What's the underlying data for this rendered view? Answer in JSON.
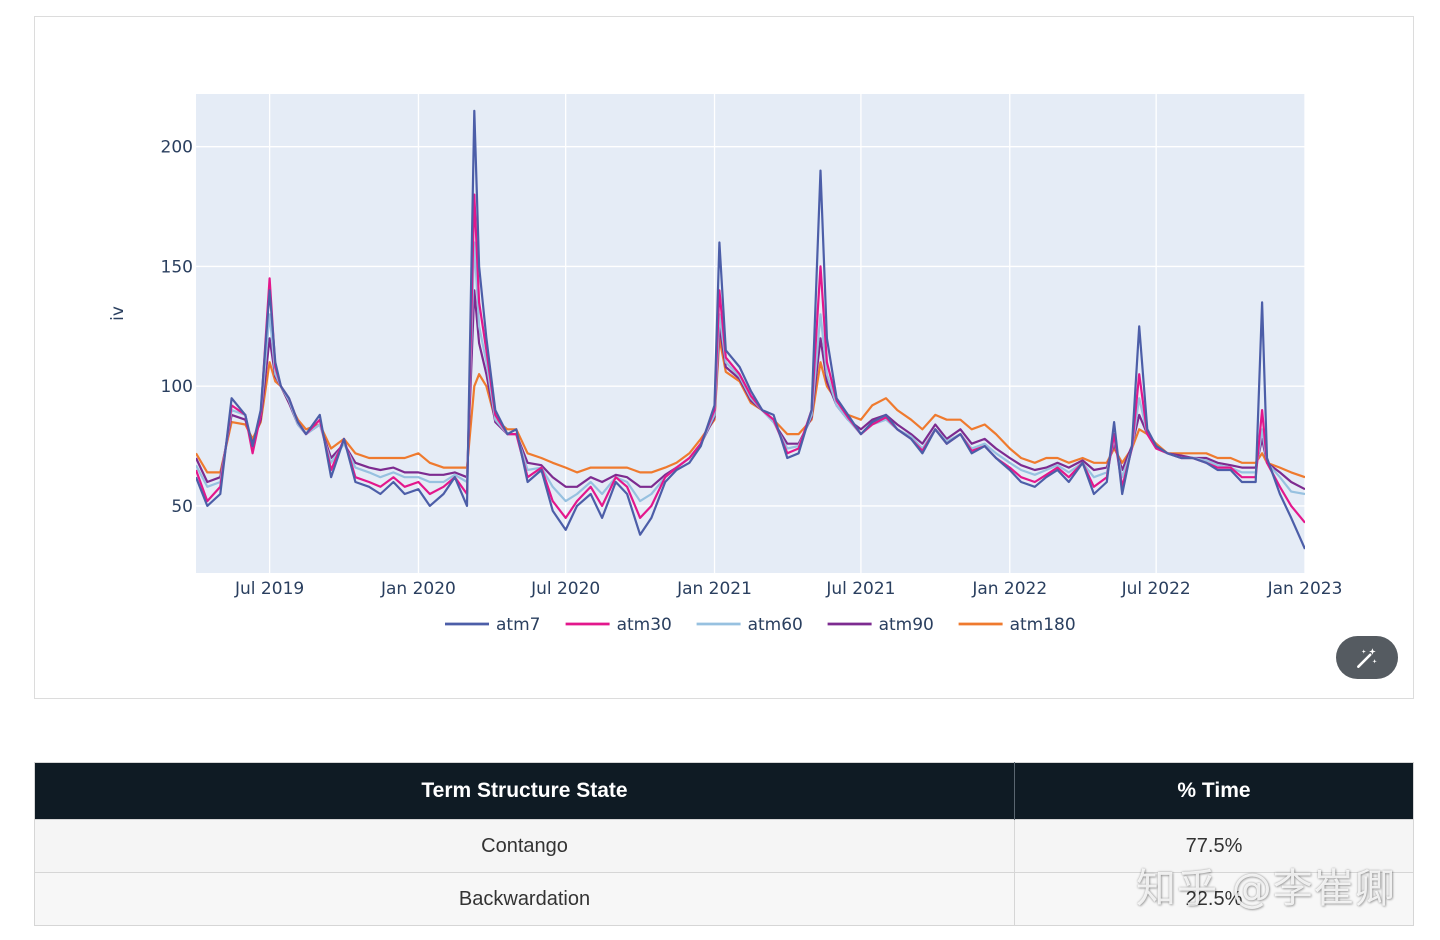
{
  "chart_data": {
    "type": "line",
    "title": "",
    "xlabel": "",
    "ylabel": "iv",
    "ylim": [
      22,
      222
    ],
    "y_ticks": [
      50,
      100,
      150,
      200
    ],
    "x_range": [
      "2019-04-01",
      "2023-01-01"
    ],
    "x_ticks": [
      {
        "date": "2019-07-01",
        "label": "Jul 2019"
      },
      {
        "date": "2020-01-01",
        "label": "Jan 2020"
      },
      {
        "date": "2020-07-01",
        "label": "Jul 2020"
      },
      {
        "date": "2021-01-01",
        "label": "Jan 2021"
      },
      {
        "date": "2021-07-01",
        "label": "Jul 2021"
      },
      {
        "date": "2022-01-01",
        "label": "Jan 2022"
      },
      {
        "date": "2022-07-01",
        "label": "Jul 2022"
      },
      {
        "date": "2023-01-01",
        "label": "Jan 2023"
      }
    ],
    "legend_position": "bottom-center",
    "grid": true,
    "x": [
      "2019-04-01",
      "2019-04-15",
      "2019-05-01",
      "2019-05-15",
      "2019-06-01",
      "2019-06-10",
      "2019-06-20",
      "2019-07-01",
      "2019-07-08",
      "2019-07-15",
      "2019-07-25",
      "2019-08-05",
      "2019-08-15",
      "2019-09-01",
      "2019-09-15",
      "2019-10-01",
      "2019-10-15",
      "2019-11-01",
      "2019-11-15",
      "2019-12-01",
      "2019-12-15",
      "2020-01-01",
      "2020-01-15",
      "2020-02-01",
      "2020-02-15",
      "2020-03-01",
      "2020-03-10",
      "2020-03-16",
      "2020-03-25",
      "2020-04-05",
      "2020-04-20",
      "2020-05-01",
      "2020-05-15",
      "2020-06-01",
      "2020-06-15",
      "2020-07-01",
      "2020-07-15",
      "2020-08-01",
      "2020-08-15",
      "2020-09-01",
      "2020-09-15",
      "2020-10-01",
      "2020-10-15",
      "2020-11-01",
      "2020-11-15",
      "2020-12-01",
      "2020-12-15",
      "2021-01-01",
      "2021-01-07",
      "2021-01-15",
      "2021-02-01",
      "2021-02-15",
      "2021-03-01",
      "2021-03-15",
      "2021-04-01",
      "2021-04-15",
      "2021-05-01",
      "2021-05-12",
      "2021-05-20",
      "2021-06-01",
      "2021-06-15",
      "2021-07-01",
      "2021-07-15",
      "2021-08-01",
      "2021-08-15",
      "2021-09-01",
      "2021-09-15",
      "2021-10-01",
      "2021-10-15",
      "2021-11-01",
      "2021-11-15",
      "2021-12-01",
      "2021-12-15",
      "2022-01-01",
      "2022-01-15",
      "2022-02-01",
      "2022-02-15",
      "2022-03-01",
      "2022-03-15",
      "2022-04-01",
      "2022-04-15",
      "2022-05-01",
      "2022-05-10",
      "2022-05-20",
      "2022-06-01",
      "2022-06-10",
      "2022-06-20",
      "2022-07-01",
      "2022-07-15",
      "2022-08-01",
      "2022-08-15",
      "2022-09-01",
      "2022-09-15",
      "2022-10-01",
      "2022-10-15",
      "2022-11-01",
      "2022-11-09",
      "2022-11-15",
      "2022-12-01",
      "2022-12-15",
      "2023-01-01"
    ],
    "series": [
      {
        "name": "atm7",
        "color": "#4c5ea8",
        "values": [
          62,
          50,
          55,
          95,
          88,
          75,
          90,
          140,
          110,
          100,
          95,
          85,
          80,
          88,
          62,
          78,
          60,
          58,
          55,
          60,
          55,
          57,
          50,
          55,
          62,
          50,
          215,
          150,
          120,
          90,
          80,
          82,
          60,
          65,
          48,
          40,
          50,
          55,
          45,
          60,
          55,
          38,
          45,
          60,
          65,
          68,
          75,
          92,
          160,
          115,
          108,
          98,
          90,
          88,
          70,
          72,
          90,
          190,
          120,
          95,
          88,
          80,
          85,
          88,
          82,
          78,
          72,
          82,
          76,
          80,
          72,
          75,
          70,
          65,
          60,
          58,
          62,
          65,
          60,
          68,
          55,
          60,
          85,
          55,
          75,
          125,
          82,
          75,
          72,
          70,
          70,
          68,
          65,
          65,
          60,
          60,
          135,
          70,
          55,
          45,
          32
        ]
      },
      {
        "name": "atm30",
        "color": "#e3178c",
        "values": [
          65,
          52,
          58,
          92,
          88,
          72,
          88,
          145,
          108,
          100,
          95,
          85,
          80,
          86,
          65,
          78,
          62,
          60,
          58,
          62,
          58,
          60,
          55,
          58,
          62,
          55,
          180,
          135,
          115,
          88,
          80,
          80,
          62,
          66,
          52,
          45,
          52,
          58,
          50,
          62,
          58,
          45,
          50,
          62,
          66,
          70,
          76,
          90,
          140,
          112,
          105,
          96,
          90,
          86,
          72,
          74,
          90,
          150,
          110,
          94,
          87,
          80,
          84,
          87,
          82,
          78,
          73,
          82,
          76,
          80,
          73,
          75,
          70,
          66,
          62,
          60,
          63,
          66,
          62,
          68,
          58,
          62,
          80,
          58,
          74,
          105,
          80,
          74,
          72,
          70,
          70,
          68,
          66,
          66,
          62,
          62,
          90,
          68,
          58,
          50,
          43
        ]
      },
      {
        "name": "atm60",
        "color": "#97c1e0",
        "values": [
          67,
          58,
          60,
          90,
          88,
          74,
          88,
          130,
          105,
          100,
          94,
          84,
          80,
          84,
          68,
          76,
          66,
          64,
          62,
          64,
          62,
          62,
          60,
          60,
          63,
          60,
          160,
          125,
          110,
          86,
          80,
          80,
          65,
          66,
          58,
          52,
          55,
          60,
          55,
          62,
          60,
          52,
          55,
          62,
          66,
          70,
          76,
          88,
          130,
          110,
          104,
          95,
          90,
          85,
          74,
          75,
          88,
          130,
          105,
          92,
          86,
          80,
          84,
          86,
          82,
          79,
          74,
          82,
          77,
          80,
          74,
          76,
          72,
          68,
          65,
          63,
          65,
          67,
          64,
          68,
          62,
          64,
          78,
          62,
          74,
          95,
          80,
          74,
          72,
          70,
          70,
          69,
          67,
          66,
          64,
          64,
          82,
          68,
          62,
          56,
          55
        ]
      },
      {
        "name": "atm90",
        "color": "#7d2b90",
        "values": [
          70,
          60,
          62,
          88,
          86,
          76,
          86,
          120,
          104,
          100,
          93,
          84,
          80,
          84,
          70,
          76,
          68,
          66,
          65,
          66,
          64,
          64,
          63,
          63,
          64,
          62,
          140,
          118,
          105,
          85,
          80,
          80,
          68,
          67,
          62,
          58,
          58,
          62,
          60,
          63,
          62,
          58,
          58,
          63,
          66,
          70,
          76,
          87,
          125,
          108,
          103,
          94,
          90,
          85,
          76,
          76,
          87,
          120,
          102,
          92,
          86,
          82,
          86,
          88,
          84,
          80,
          76,
          84,
          78,
          82,
          76,
          78,
          74,
          70,
          67,
          65,
          66,
          68,
          66,
          69,
          65,
          66,
          76,
          65,
          75,
          88,
          80,
          75,
          72,
          71,
          70,
          70,
          68,
          67,
          66,
          66,
          78,
          68,
          64,
          60,
          57
        ]
      },
      {
        "name": "atm180",
        "color": "#ef7a2e",
        "values": [
          72,
          64,
          64,
          85,
          84,
          78,
          85,
          110,
          102,
          100,
          93,
          86,
          82,
          84,
          74,
          78,
          72,
          70,
          70,
          70,
          70,
          72,
          68,
          66,
          66,
          66,
          100,
          105,
          100,
          86,
          82,
          82,
          72,
          70,
          68,
          66,
          64,
          66,
          66,
          66,
          66,
          64,
          64,
          66,
          68,
          72,
          78,
          86,
          120,
          106,
          102,
          93,
          90,
          86,
          80,
          80,
          86,
          110,
          100,
          94,
          88,
          86,
          92,
          95,
          90,
          86,
          82,
          88,
          86,
          86,
          82,
          84,
          80,
          74,
          70,
          68,
          70,
          70,
          68,
          70,
          68,
          68,
          74,
          68,
          74,
          82,
          80,
          76,
          72,
          72,
          72,
          72,
          70,
          70,
          68,
          68,
          72,
          68,
          66,
          64,
          62
        ]
      }
    ]
  },
  "ui": {
    "magic_icon": "magic-wand-icon"
  },
  "table": {
    "headers": [
      "Term Structure State",
      "% Time"
    ],
    "rows": [
      [
        "Contango",
        "77.5%"
      ],
      [
        "Backwardation",
        "22.5%"
      ]
    ]
  },
  "watermark": "知乎 @李崔卿"
}
